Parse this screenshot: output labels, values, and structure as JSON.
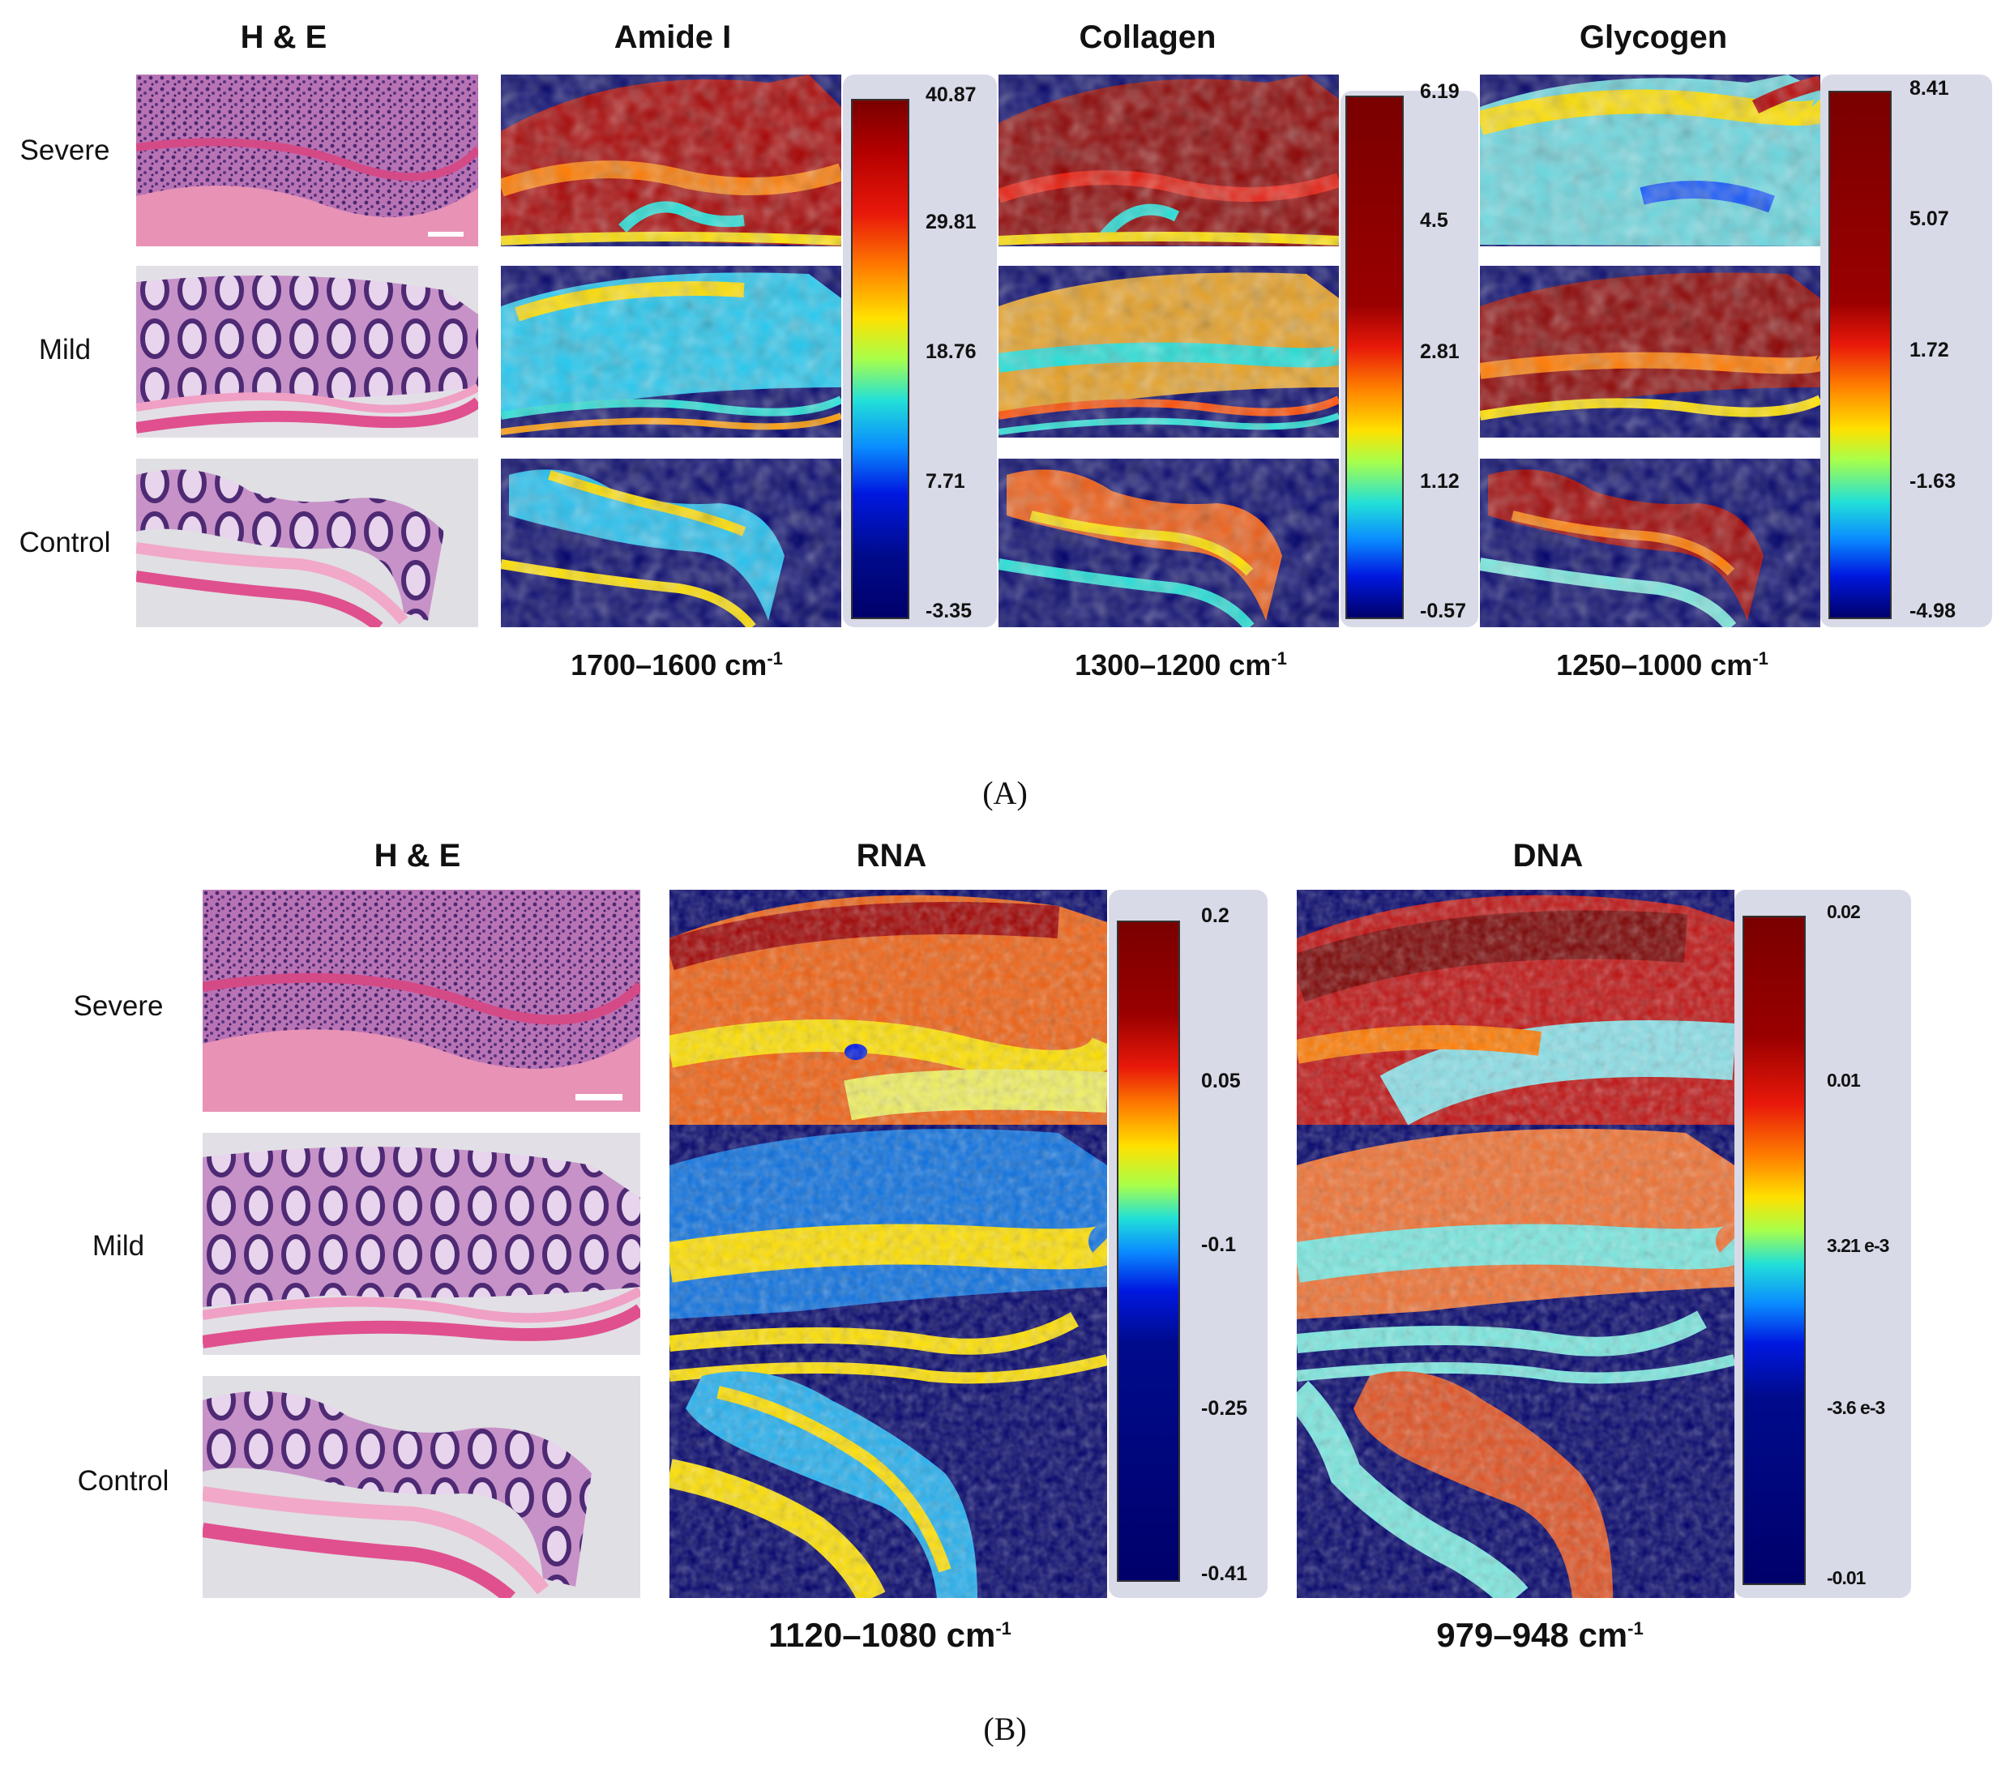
{
  "panel_a": {
    "headers": {
      "he": "H & E",
      "amide": "Amide I",
      "collagen": "Collagen",
      "glycogen": "Glycogen"
    },
    "rows": {
      "severe": "Severe",
      "mild": "Mild",
      "control": "Control"
    },
    "ranges": {
      "amide": {
        "text": "1700–1600 cm",
        "sup": "-1"
      },
      "collagen": {
        "text": "1300–1200 cm",
        "sup": "-1"
      },
      "glycogen": {
        "text": "1250–1000 cm",
        "sup": "-1"
      }
    },
    "colorbars": {
      "amide": [
        "40.87",
        "29.81",
        "18.76",
        "7.71",
        "-3.35"
      ],
      "collagen": [
        "6.19",
        "4.5",
        "2.81",
        "1.12",
        "-0.57"
      ],
      "glycogen": [
        "8.41",
        "5.07",
        "1.72",
        "-1.63",
        "-4.98"
      ]
    },
    "label": "(A)"
  },
  "panel_b": {
    "headers": {
      "he": "H & E",
      "rna": "RNA",
      "dna": "DNA"
    },
    "rows": {
      "severe": "Severe",
      "mild": "Mild",
      "control": "Control"
    },
    "ranges": {
      "rna": {
        "text": "1120–1080 cm",
        "sup": "-1"
      },
      "dna": {
        "text": "979–948 cm",
        "sup": "-1"
      }
    },
    "colorbars": {
      "rna": [
        "0.2",
        "0.05",
        "-0.1",
        "-0.25",
        "-0.41"
      ],
      "dna": [
        "0.02",
        "0.01",
        "3.21 e-3",
        "-3.6 e-3",
        "-0.01"
      ]
    },
    "label": "(B)"
  },
  "colors": {
    "colormap_dark_red": "#7a0000",
    "colormap_red": "#e8180a",
    "colormap_yellow": "#ffe000",
    "colormap_cyan": "#22e0d8",
    "colormap_blue": "#0018e0",
    "colormap_navy": "#00006a",
    "he_pink": "#e07aa0",
    "he_purple": "#6a3a88",
    "colorbar_panel": "#d9dae8"
  }
}
